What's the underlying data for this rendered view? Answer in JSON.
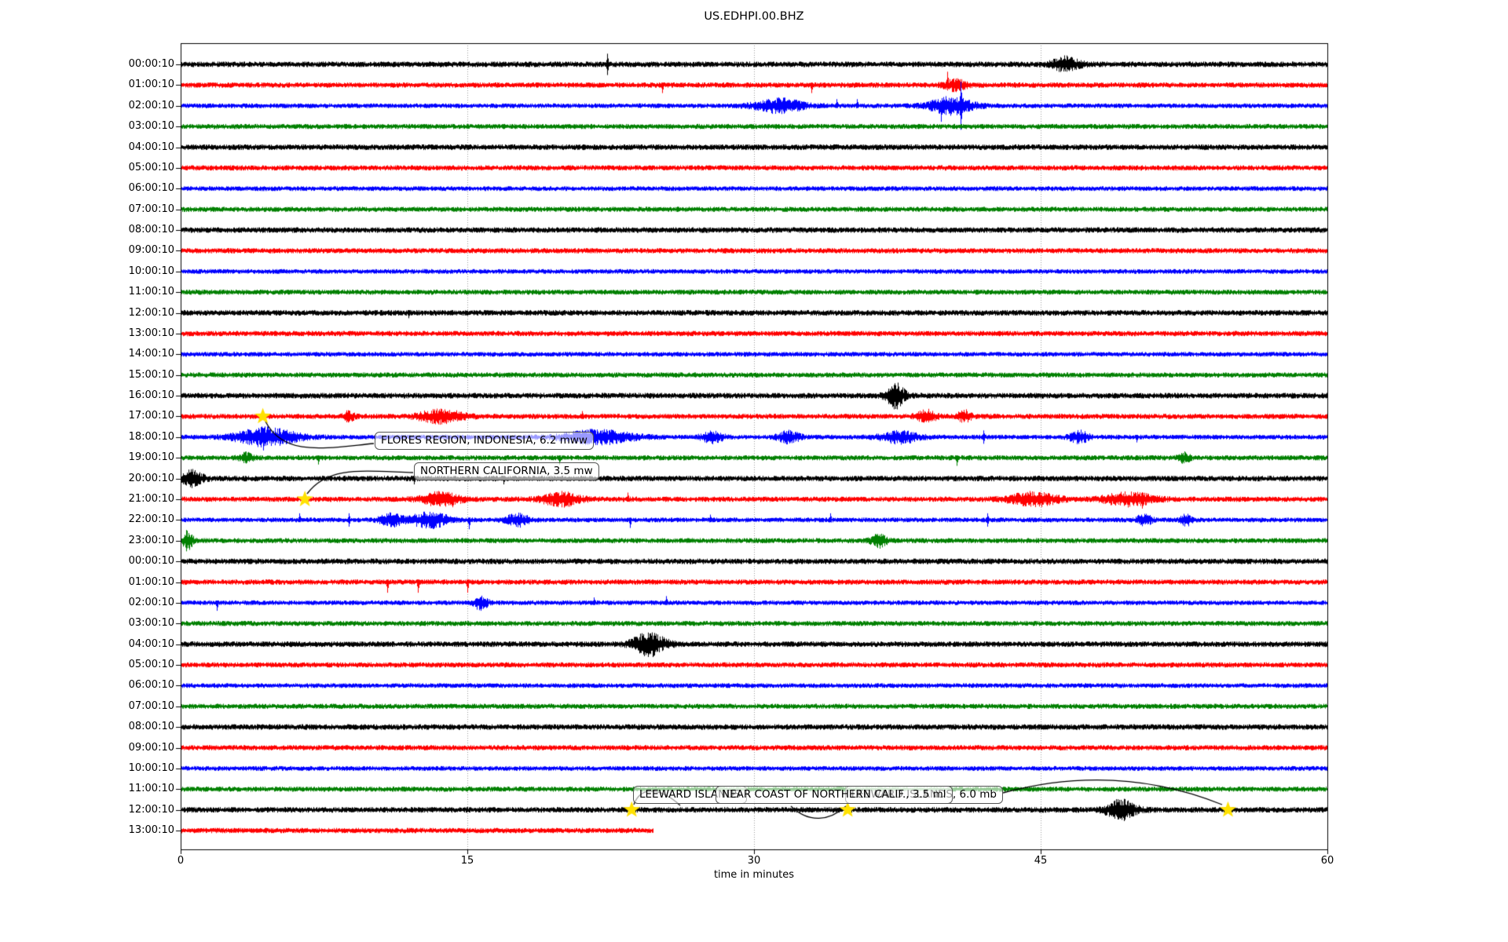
{
  "chart_data": {
    "type": "line",
    "subtype": "seismogram-helicorder-dayplot",
    "title": "US.EDHPI.00.BHZ",
    "xlabel": "time in minutes",
    "x_range": [
      0,
      60
    ],
    "x_ticks": [
      0,
      15,
      30,
      45,
      60
    ],
    "grid_minutes": [
      15,
      30,
      45
    ],
    "grid_style": "vertical dotted",
    "row_interval": "1 hour per row",
    "trace_color_cycle": [
      "#000000",
      "#ff0000",
      "#0000ff",
      "#008000"
    ],
    "marker_color": "#ffe100",
    "rows": [
      {
        "label": "00:00:10",
        "color": "#000000",
        "end_minute": 60,
        "events": [
          {
            "t": 22.3,
            "kind": "spike",
            "amp": 4,
            "dir": "both"
          },
          {
            "t": 46.3,
            "kind": "burst",
            "dur": 1.0,
            "amp": 2.2
          }
        ]
      },
      {
        "label": "01:00:10",
        "color": "#ff0000",
        "end_minute": 60,
        "events": [
          {
            "t": 25.2,
            "kind": "spike",
            "amp": 3,
            "dir": "down"
          },
          {
            "t": 33.0,
            "kind": "spike",
            "amp": 3,
            "dir": "down"
          },
          {
            "t": 40.1,
            "kind": "spike",
            "amp": 5,
            "dir": "up"
          },
          {
            "t": 40.5,
            "kind": "burst",
            "dur": 0.8,
            "amp": 1.8
          }
        ]
      },
      {
        "label": "02:00:10",
        "color": "#0000ff",
        "end_minute": 60,
        "events": [
          {
            "t": 31.3,
            "kind": "burst",
            "dur": 1.8,
            "amp": 2.6
          },
          {
            "t": 34.3,
            "kind": "spike",
            "amp": 2.5,
            "dir": "up"
          },
          {
            "t": 35.4,
            "kind": "spike",
            "amp": 2.5,
            "dir": "up"
          },
          {
            "t": 39.8,
            "kind": "spike",
            "amp": 6,
            "dir": "down"
          },
          {
            "t": 40.3,
            "kind": "burst",
            "dur": 1.6,
            "amp": 3.2
          },
          {
            "t": 40.8,
            "kind": "spike",
            "amp": 9,
            "dir": "both"
          }
        ]
      },
      {
        "label": "03:00:10",
        "color": "#008000",
        "end_minute": 60,
        "events": []
      },
      {
        "label": "04:00:10",
        "color": "#000000",
        "end_minute": 60,
        "events": []
      },
      {
        "label": "05:00:10",
        "color": "#ff0000",
        "end_minute": 60,
        "events": []
      },
      {
        "label": "06:00:10",
        "color": "#0000ff",
        "end_minute": 60,
        "events": []
      },
      {
        "label": "07:00:10",
        "color": "#008000",
        "end_minute": 60,
        "events": []
      },
      {
        "label": "08:00:10",
        "color": "#000000",
        "end_minute": 60,
        "events": []
      },
      {
        "label": "09:00:10",
        "color": "#ff0000",
        "end_minute": 60,
        "events": []
      },
      {
        "label": "10:00:10",
        "color": "#0000ff",
        "end_minute": 60,
        "events": []
      },
      {
        "label": "11:00:10",
        "color": "#008000",
        "end_minute": 60,
        "events": []
      },
      {
        "label": "12:00:10",
        "color": "#000000",
        "end_minute": 60,
        "events": [
          {
            "t": 11.9,
            "kind": "spike",
            "amp": 2,
            "dir": "down"
          }
        ]
      },
      {
        "label": "13:00:10",
        "color": "#ff0000",
        "end_minute": 60,
        "events": []
      },
      {
        "label": "14:00:10",
        "color": "#0000ff",
        "end_minute": 60,
        "events": []
      },
      {
        "label": "15:00:10",
        "color": "#008000",
        "end_minute": 60,
        "events": []
      },
      {
        "label": "16:00:10",
        "color": "#000000",
        "end_minute": 60,
        "events": [
          {
            "t": 37.4,
            "kind": "burst",
            "dur": 0.7,
            "amp": 4
          },
          {
            "t": 37.3,
            "kind": "spike",
            "amp": 4,
            "dir": "both"
          }
        ]
      },
      {
        "label": "17:00:10",
        "color": "#ff0000",
        "end_minute": 60,
        "events": [
          {
            "t": 8.8,
            "kind": "burst",
            "dur": 0.4,
            "amp": 1.6
          },
          {
            "t": 13.6,
            "kind": "burst",
            "dur": 1.6,
            "amp": 2.2
          },
          {
            "t": 21.0,
            "kind": "spike",
            "amp": 2,
            "dir": "up"
          },
          {
            "t": 39.0,
            "kind": "burst",
            "dur": 0.7,
            "amp": 2
          },
          {
            "t": 41.0,
            "kind": "burst",
            "dur": 0.5,
            "amp": 1.8
          }
        ]
      },
      {
        "label": "18:00:10",
        "color": "#0000ff",
        "end_minute": 60,
        "events": [
          {
            "t": 4.5,
            "kind": "burst",
            "dur": 2.2,
            "amp": 3.5
          },
          {
            "t": 4.3,
            "kind": "spike",
            "amp": 5,
            "dir": "down"
          },
          {
            "t": 21.8,
            "kind": "burst",
            "dur": 2.6,
            "amp": 2.6
          },
          {
            "t": 27.8,
            "kind": "burst",
            "dur": 0.8,
            "amp": 2
          },
          {
            "t": 31.8,
            "kind": "burst",
            "dur": 0.8,
            "amp": 2.2
          },
          {
            "t": 37.6,
            "kind": "burst",
            "dur": 1.4,
            "amp": 2.2
          },
          {
            "t": 42.0,
            "kind": "spike",
            "amp": 2.5,
            "dir": "both"
          },
          {
            "t": 47.0,
            "kind": "burst",
            "dur": 0.7,
            "amp": 2.2
          },
          {
            "t": 50.0,
            "kind": "spike",
            "amp": 2,
            "dir": "down"
          }
        ]
      },
      {
        "label": "19:00:10",
        "color": "#008000",
        "end_minute": 60,
        "events": [
          {
            "t": 3.4,
            "kind": "burst",
            "dur": 0.5,
            "amp": 1.6
          },
          {
            "t": 7.2,
            "kind": "spike",
            "amp": 2.5,
            "dir": "down"
          },
          {
            "t": 19.8,
            "kind": "spike",
            "amp": 2.5,
            "dir": "down"
          },
          {
            "t": 40.6,
            "kind": "spike",
            "amp": 3,
            "dir": "down"
          },
          {
            "t": 52.5,
            "kind": "burst",
            "dur": 0.4,
            "amp": 1.6
          }
        ]
      },
      {
        "label": "20:00:10",
        "color": "#000000",
        "end_minute": 60,
        "events": [
          {
            "t": 0.6,
            "kind": "burst",
            "dur": 0.8,
            "amp": 2.4
          },
          {
            "t": 12.2,
            "kind": "spike",
            "amp": 2.2,
            "dir": "down"
          },
          {
            "t": 16.9,
            "kind": "spike",
            "amp": 2.2,
            "dir": "down"
          }
        ]
      },
      {
        "label": "21:00:10",
        "color": "#ff0000",
        "end_minute": 60,
        "events": [
          {
            "t": 13.6,
            "kind": "burst",
            "dur": 1.4,
            "amp": 2.2
          },
          {
            "t": 14.2,
            "kind": "spike",
            "amp": 3,
            "dir": "down"
          },
          {
            "t": 19.9,
            "kind": "burst",
            "dur": 1.4,
            "amp": 2.2
          },
          {
            "t": 23.4,
            "kind": "spike",
            "amp": 2.5,
            "dir": "up"
          },
          {
            "t": 44.6,
            "kind": "burst",
            "dur": 1.8,
            "amp": 2.2
          },
          {
            "t": 49.6,
            "kind": "burst",
            "dur": 1.8,
            "amp": 2.2
          },
          {
            "t": 50.3,
            "kind": "spike",
            "amp": 3.5,
            "dir": "down"
          }
        ]
      },
      {
        "label": "22:00:10",
        "color": "#0000ff",
        "end_minute": 60,
        "events": [
          {
            "t": 6.2,
            "kind": "spike",
            "amp": 2.5,
            "dir": "up"
          },
          {
            "t": 8.8,
            "kind": "spike",
            "amp": 2.5,
            "dir": "both"
          },
          {
            "t": 11.0,
            "kind": "burst",
            "dur": 0.8,
            "amp": 2.4
          },
          {
            "t": 13.0,
            "kind": "burst",
            "dur": 1.4,
            "amp": 3
          },
          {
            "t": 15.1,
            "kind": "spike",
            "amp": 3.5,
            "dir": "down"
          },
          {
            "t": 17.6,
            "kind": "burst",
            "dur": 0.8,
            "amp": 2.4
          },
          {
            "t": 23.5,
            "kind": "spike",
            "amp": 3,
            "dir": "down"
          },
          {
            "t": 27.7,
            "kind": "spike",
            "amp": 2,
            "dir": "up"
          },
          {
            "t": 34.0,
            "kind": "spike",
            "amp": 2.5,
            "dir": "up"
          },
          {
            "t": 42.2,
            "kind": "spike",
            "amp": 2.5,
            "dir": "both"
          },
          {
            "t": 50.4,
            "kind": "burst",
            "dur": 0.5,
            "amp": 2.4
          },
          {
            "t": 52.6,
            "kind": "burst",
            "dur": 0.4,
            "amp": 2
          }
        ]
      },
      {
        "label": "23:00:10",
        "color": "#008000",
        "end_minute": 60,
        "events": [
          {
            "t": 0.35,
            "kind": "burst",
            "dur": 0.4,
            "amp": 3
          },
          {
            "t": 0.3,
            "kind": "spike",
            "amp": 4,
            "dir": "both"
          },
          {
            "t": 36.5,
            "kind": "burst",
            "dur": 0.6,
            "amp": 2.2
          }
        ]
      },
      {
        "label": "00:00:10",
        "color": "#000000",
        "end_minute": 60,
        "events": []
      },
      {
        "label": "01:00:10",
        "color": "#ff0000",
        "end_minute": 60,
        "events": [
          {
            "t": 10.8,
            "kind": "spike",
            "amp": 4,
            "dir": "down"
          },
          {
            "t": 12.4,
            "kind": "spike",
            "amp": 4,
            "dir": "down"
          },
          {
            "t": 15.0,
            "kind": "spike",
            "amp": 4,
            "dir": "down"
          }
        ]
      },
      {
        "label": "02:00:10",
        "color": "#0000ff",
        "end_minute": 60,
        "events": [
          {
            "t": 1.9,
            "kind": "spike",
            "amp": 3,
            "dir": "down"
          },
          {
            "t": 15.7,
            "kind": "burst",
            "dur": 0.5,
            "amp": 2.6
          },
          {
            "t": 15.7,
            "kind": "spike",
            "amp": 3,
            "dir": "down"
          },
          {
            "t": 21.6,
            "kind": "spike",
            "amp": 2,
            "dir": "up"
          },
          {
            "t": 25.4,
            "kind": "spike",
            "amp": 2.5,
            "dir": "up"
          }
        ]
      },
      {
        "label": "03:00:10",
        "color": "#008000",
        "end_minute": 60,
        "events": []
      },
      {
        "label": "04:00:10",
        "color": "#000000",
        "end_minute": 60,
        "events": [
          {
            "t": 24.5,
            "kind": "burst",
            "dur": 1.2,
            "amp": 3.8
          }
        ]
      },
      {
        "label": "05:00:10",
        "color": "#ff0000",
        "end_minute": 60,
        "events": []
      },
      {
        "label": "06:00:10",
        "color": "#0000ff",
        "end_minute": 60,
        "events": []
      },
      {
        "label": "07:00:10",
        "color": "#008000",
        "end_minute": 60,
        "events": []
      },
      {
        "label": "08:00:10",
        "color": "#000000",
        "end_minute": 60,
        "events": []
      },
      {
        "label": "09:00:10",
        "color": "#ff0000",
        "end_minute": 60,
        "events": []
      },
      {
        "label": "10:00:10",
        "color": "#0000ff",
        "end_minute": 60,
        "events": []
      },
      {
        "label": "11:00:10",
        "color": "#008000",
        "end_minute": 60,
        "events": []
      },
      {
        "label": "12:00:10",
        "color": "#000000",
        "end_minute": 60,
        "events": [
          {
            "t": 49.2,
            "kind": "burst",
            "dur": 1.1,
            "amp": 3.2
          }
        ]
      },
      {
        "label": "13:00:10",
        "color": "#ff0000",
        "end_minute": 24.7,
        "events": []
      }
    ],
    "event_markers": [
      {
        "row": 17,
        "minute": 4.3
      },
      {
        "row": 21,
        "minute": 6.5
      },
      {
        "row": 36,
        "minute": 23.6
      },
      {
        "row": 36,
        "minute": 34.9
      },
      {
        "row": 36,
        "minute": 54.8
      }
    ],
    "event_labels": [
      {
        "text": "FLORES REGION, INDONESIA, 6.2 mww"
      },
      {
        "text": "NORTHERN CALIFORNIA, 3.5 mw"
      },
      {
        "text": "LEEWARD ISLANDS"
      },
      {
        "text": "NEAR COAST OF NORTHERN CALIF., 3.5 ml"
      },
      {
        "text": "LEEWARD ISLANDS, 6.0 mb"
      }
    ]
  }
}
